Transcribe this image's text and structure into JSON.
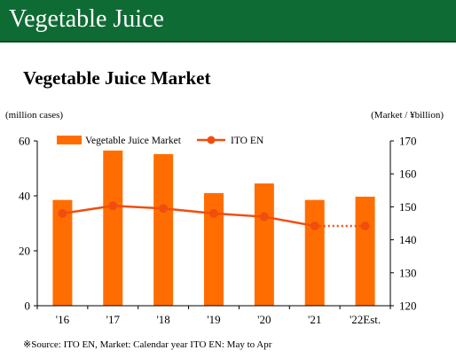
{
  "header": {
    "title": "Vegetable Juice"
  },
  "chart_data": {
    "type": "bar",
    "title": "Vegetable Juice Market",
    "categories": [
      "'16",
      "'17",
      "'18",
      "'19",
      "'20",
      "'21",
      "'22Est."
    ],
    "series": [
      {
        "name": "Vegetable Juice Market",
        "type": "bar",
        "axis": "left",
        "values": [
          38.5,
          56.5,
          55.2,
          41,
          44.5,
          38.5,
          39.7
        ]
      },
      {
        "name": "ITO EN",
        "type": "line",
        "axis": "right",
        "values": [
          148,
          150.3,
          149.5,
          148,
          147,
          144.2,
          144.2
        ],
        "estimated_from_index": 5
      }
    ],
    "y_left": {
      "label": "(million cases)",
      "min": 0,
      "max": 60,
      "ticks": [
        0,
        20,
        40,
        60
      ]
    },
    "y_right": {
      "label": "(Market / ¥billion)",
      "min": 120,
      "max": 170,
      "ticks": [
        120,
        130,
        140,
        150,
        160,
        170
      ]
    },
    "legend": "top",
    "grid": false,
    "colors": {
      "bar": "#ff6d00",
      "line": "#f04e0e",
      "header": "#0f6b34"
    }
  },
  "footnote": "※Source: ITO EN, Market: Calendar year ITO EN: May to Apr"
}
